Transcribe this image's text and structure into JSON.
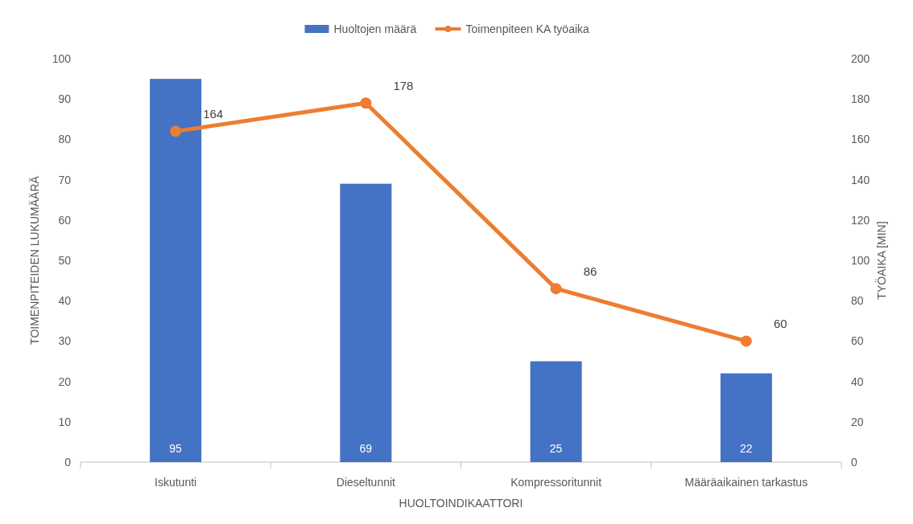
{
  "chart_data": {
    "type": "bar",
    "categories": [
      "Iskutunti",
      "Dieseltunnit",
      "Kompressoritunnit",
      "Määräaikainen tarkastus"
    ],
    "series": [
      {
        "name": "Huoltojen määrä",
        "color": "#4472c4",
        "values": [
          95,
          69,
          25,
          22
        ]
      },
      {
        "name": "Toimenpiteen KA työaika",
        "type": "line",
        "axis": "y2",
        "color": "#ed7d31",
        "values": [
          164,
          178,
          86,
          60
        ]
      }
    ],
    "xlabel": "HUOLTOINDIKAATTORI",
    "ylabel": "TOIMENPITEIDEN LUKUMÄÄRÄ",
    "y2label": "TYÖAIKA [MIN]",
    "ylim": [
      0,
      100
    ],
    "yticks": [
      0,
      10,
      20,
      30,
      40,
      50,
      60,
      70,
      80,
      90,
      100
    ],
    "y2lim": [
      0,
      200
    ],
    "y2ticks": [
      0,
      20,
      40,
      60,
      80,
      100,
      120,
      140,
      160,
      180,
      200
    ],
    "data_labels": true,
    "legend": "top",
    "grid": false,
    "marker": "circle",
    "line_style": "solid"
  }
}
